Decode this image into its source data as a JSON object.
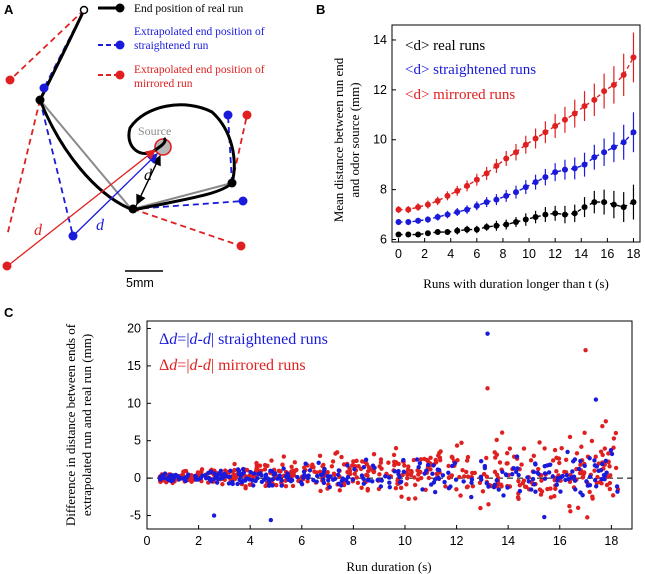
{
  "panels": {
    "A": {
      "label": "A",
      "legend": [
        {
          "text": "End position of real run",
          "color": "#000000"
        },
        {
          "text": "Extrapolated end position of",
          "text2": "straightened run",
          "color": "#1a1adb"
        },
        {
          "text": "Extrapolated end position of",
          "text2": "mirrored run",
          "color": "#e02020"
        }
      ],
      "source_label": "Source",
      "d_black": "d",
      "d_blue": "d",
      "d_red": "d",
      "scale_bar": "5mm"
    },
    "B": {
      "label": "B"
    },
    "C": {
      "label": "C"
    }
  },
  "colors": {
    "real": "#000000",
    "straight": "#1a1adb",
    "mirror": "#e02020",
    "gray": "#8a8a8a"
  },
  "chart_data": [
    {
      "id": "B",
      "type": "line",
      "title": "",
      "xlabel": "Runs with duration longer than t (s)",
      "ylabel_line1": "Mean distance between run end",
      "ylabel_line2": "and odor source (mm)",
      "xlim": [
        -0.5,
        18.5
      ],
      "ylim": [
        5.9,
        14.6
      ],
      "xticks": [
        0,
        2,
        4,
        6,
        8,
        10,
        12,
        14,
        16,
        18
      ],
      "yticks": [
        6,
        8,
        10,
        12,
        14
      ],
      "x": [
        0,
        0.75,
        1.5,
        2.25,
        3,
        3.75,
        4.5,
        5.25,
        6,
        6.75,
        7.5,
        8.25,
        9,
        9.75,
        10.5,
        11.25,
        12,
        12.75,
        13.5,
        14.25,
        15,
        15.75,
        16.5,
        17.25,
        18
      ],
      "legend": [
        {
          "prefix": "<d>",
          "label": "real runs",
          "series": "real"
        },
        {
          "prefix": "<d>",
          "label": "straightened runs",
          "series": "straight"
        },
        {
          "prefix": "<d>",
          "label": "mirrored runs",
          "series": "mirror"
        }
      ],
      "series": [
        {
          "name": "real runs",
          "key": "real",
          "color": "#000000",
          "values": [
            6.2,
            6.2,
            6.2,
            6.25,
            6.3,
            6.3,
            6.35,
            6.4,
            6.4,
            6.5,
            6.55,
            6.6,
            6.7,
            6.8,
            6.9,
            7.0,
            7.05,
            7.0,
            7.05,
            7.3,
            7.5,
            7.5,
            7.4,
            7.3,
            7.5
          ],
          "err": [
            0.1,
            0.1,
            0.1,
            0.1,
            0.1,
            0.1,
            0.15,
            0.15,
            0.15,
            0.15,
            0.2,
            0.2,
            0.2,
            0.25,
            0.25,
            0.3,
            0.3,
            0.35,
            0.35,
            0.4,
            0.45,
            0.5,
            0.55,
            0.6,
            0.7
          ]
        },
        {
          "name": "straightened runs",
          "key": "straight",
          "color": "#1a1adb",
          "values": [
            6.7,
            6.7,
            6.75,
            6.8,
            6.9,
            7.0,
            7.1,
            7.2,
            7.35,
            7.5,
            7.6,
            7.75,
            7.9,
            8.1,
            8.3,
            8.5,
            8.7,
            8.8,
            8.85,
            9.0,
            9.3,
            9.5,
            9.7,
            9.9,
            10.3
          ]
        },
        {
          "name": "mirrored runs",
          "key": "mirror",
          "color": "#e02020",
          "values": [
            7.2,
            7.2,
            7.3,
            7.4,
            7.55,
            7.75,
            7.95,
            8.15,
            8.4,
            8.65,
            8.95,
            9.25,
            9.5,
            9.8,
            10.05,
            10.3,
            10.55,
            10.8,
            11.05,
            11.35,
            11.6,
            11.95,
            12.2,
            12.6,
            13.3
          ]
        }
      ]
    },
    {
      "id": "C",
      "type": "scatter",
      "xlabel": "Run duration (s)",
      "ylabel_line1": "Difference in distance between ends of",
      "ylabel_line2": "extrapolated run and real run (mm)",
      "xlim": [
        0,
        18.8
      ],
      "ylim": [
        -6.8,
        21
      ],
      "xticks": [
        0,
        2,
        4,
        6,
        8,
        10,
        12,
        14,
        16,
        18
      ],
      "yticks": [
        -5,
        0,
        5,
        10,
        15,
        20
      ],
      "legend": [
        {
          "prefix": "Δ",
          "d1": "d",
          "mid": "=|",
          "d2": "d",
          "dash": "-",
          "d3": "d",
          "suffix": "| straightened runs",
          "series": "straight"
        },
        {
          "prefix": "Δ",
          "d1": "d",
          "mid": "=|",
          "d2": "d",
          "dash": "-",
          "d3": "d",
          "suffix": "| mirrored runs",
          "series": "mirror"
        }
      ],
      "note": "Several hundred points per series, spread widening with run duration; notable outliers: blue (13.2, 19.3), red (17.0, 17.1), red (13.2, 12.0), blue (4.8, -5.6), blue (15.4, -5.2)."
    }
  ]
}
